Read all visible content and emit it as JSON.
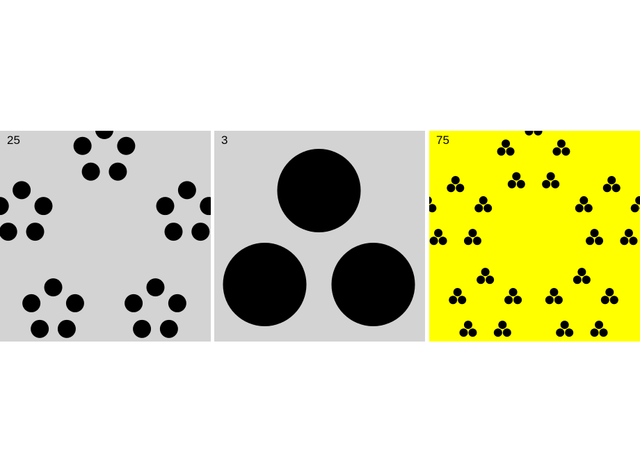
{
  "panels": [
    {
      "label": "25",
      "background": "#d3d3d3",
      "dot_color": "#000000",
      "count": 25,
      "levels": 2
    },
    {
      "label": "3",
      "background": "#d3d3d3",
      "dot_color": "#000000",
      "count": 3,
      "levels": 1
    },
    {
      "label": "75",
      "background": "#ffff00",
      "dot_color": "#000000",
      "count": 75,
      "levels": 3
    }
  ]
}
